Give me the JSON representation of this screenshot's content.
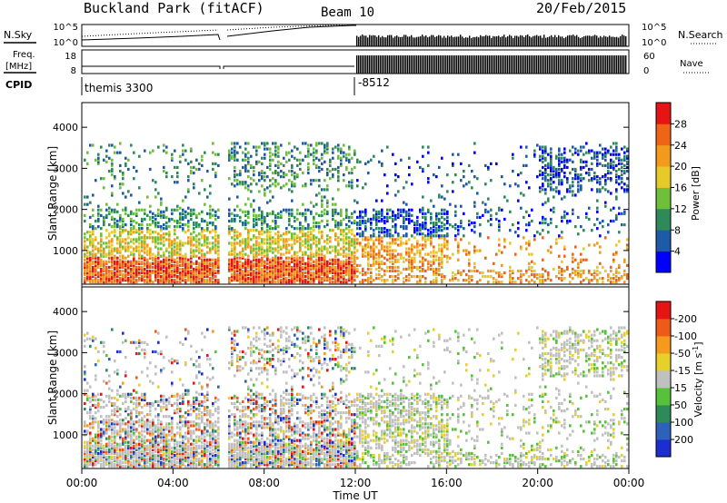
{
  "header": {
    "station": "Buckland Park (fitACF)",
    "beam": "Beam 10",
    "date": "20/Feb/2015"
  },
  "noise_panel": {
    "left_label": "N.Sky",
    "right_label": "N.Search",
    "ticks_left": [
      "10^5",
      "10^0"
    ],
    "ticks_right": [
      "10^5",
      "10^0"
    ]
  },
  "freq_panel": {
    "left_label_1": "Freq.",
    "left_label_2": "[MHz]",
    "right_label": "Nave",
    "ticks_left": [
      "18",
      "8"
    ],
    "ticks_right": [
      "60",
      "0"
    ]
  },
  "cpid": {
    "label": "CPID",
    "value_1": "themis 3300",
    "value_2": "-8512"
  },
  "chart_data": [
    {
      "type": "heatmap",
      "ylabel": "Slant Range [km]",
      "ylim": [
        180,
        4600
      ],
      "yticks": [
        "1000",
        "2000",
        "3000",
        "4000"
      ],
      "colorbar": {
        "label": "Power [dB]",
        "ticks": [
          "4",
          "8",
          "12",
          "16",
          "20",
          "24",
          "28"
        ],
        "colors": [
          "#0000ff",
          "#1e5aa8",
          "#2f8a5a",
          "#6fbf3a",
          "#e8c92a",
          "#f39a1c",
          "#f06418",
          "#e61414"
        ]
      }
    },
    {
      "type": "heatmap",
      "ylabel": "Slant Range [km]",
      "ylim": [
        180,
        4600
      ],
      "yticks": [
        "1000",
        "2000",
        "3000",
        "4000"
      ],
      "colorbar": {
        "label": "Velocity [m s-1]",
        "ticks": [
          "200",
          "100",
          "50",
          "15",
          "-15",
          "-50",
          "-100",
          "-200"
        ],
        "colors": [
          "#1c2ed0",
          "#2d62b8",
          "#2f8a5a",
          "#56c23a",
          "#c0c0c0",
          "#e8d02a",
          "#f59a1c",
          "#ee5a18",
          "#e61414"
        ]
      }
    }
  ],
  "xaxis": {
    "label": "Time UT",
    "ticks": [
      "00:00",
      "04:00",
      "08:00",
      "12:00",
      "16:00",
      "20:00",
      "00:00"
    ]
  }
}
